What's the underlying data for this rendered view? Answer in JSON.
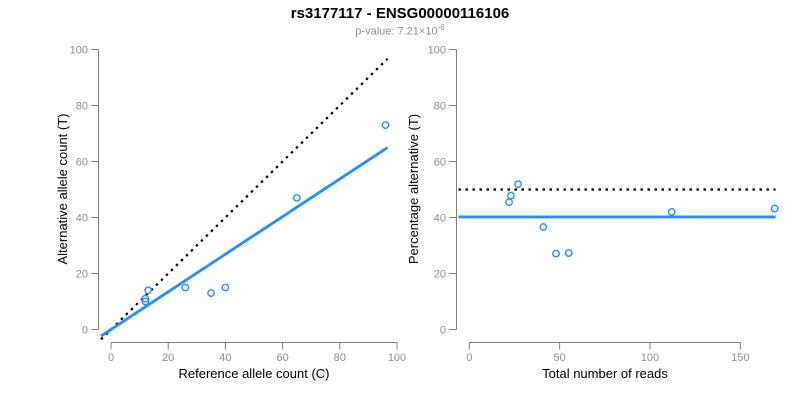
{
  "header": {
    "title": "rs3177117 - ENSG00000116106",
    "pvalue_prefix": "p-value: 7.21×10",
    "pvalue_exponent": "-6"
  },
  "colors": {
    "accent_blue": "#1E90FF",
    "axis_line": "#7d7d7d",
    "tick_label": "#8c8c8c",
    "subtitle_gray": "#8c8c8c",
    "dotted_black": "#000000"
  },
  "chart_data": [
    {
      "type": "scatter",
      "name": "allele-counts-scatter",
      "xlabel": "Reference allele count (C)",
      "ylabel": "Alternative allele count (T)",
      "xlim": [
        0,
        100
      ],
      "ylim": [
        0,
        100
      ],
      "xticks": [
        0,
        20,
        40,
        60,
        80,
        100
      ],
      "yticks": [
        0,
        20,
        40,
        60,
        80,
        100
      ],
      "grid": false,
      "legend": "none",
      "points": [
        [
          12,
          10
        ],
        [
          12,
          11
        ],
        [
          13,
          14
        ],
        [
          26,
          15
        ],
        [
          35,
          13
        ],
        [
          40,
          15
        ],
        [
          65,
          47
        ],
        [
          96,
          73
        ]
      ],
      "lines": [
        {
          "name": "identity-50pct-line",
          "style": "dotted",
          "color": "#000000",
          "from": [
            -3.5,
            -3.5
          ],
          "to": [
            96.7,
            96.7
          ]
        },
        {
          "name": "observed-ratio-line",
          "style": "solid",
          "color": "#1E90FF",
          "from": [
            -3.5,
            -2.35
          ],
          "to": [
            96.7,
            65.0
          ]
        }
      ]
    },
    {
      "type": "scatter",
      "name": "percentage-vs-reads-scatter",
      "xlabel": "Total number of reads",
      "ylabel": "Percentage alternative (T)",
      "xlim": [
        0,
        150
      ],
      "ylim": [
        0,
        100
      ],
      "xticks": [
        0,
        50,
        100,
        150
      ],
      "yticks": [
        0,
        20,
        40,
        60,
        80,
        100
      ],
      "grid": false,
      "legend": "none",
      "points": [
        [
          22,
          45.5
        ],
        [
          23,
          47.8
        ],
        [
          27,
          51.9
        ],
        [
          41,
          36.6
        ],
        [
          48,
          27.1
        ],
        [
          55,
          27.3
        ],
        [
          112,
          42.0
        ],
        [
          169,
          43.2
        ]
      ],
      "lines": [
        {
          "name": "fifty-percent-line",
          "style": "dotted",
          "color": "#000000",
          "from": [
            -6,
            50
          ],
          "to": [
            169.5,
            50
          ]
        },
        {
          "name": "mean-percentage-line",
          "style": "solid",
          "color": "#1E90FF",
          "from": [
            -6,
            40.2
          ],
          "to": [
            169.5,
            40.2
          ]
        }
      ]
    }
  ]
}
